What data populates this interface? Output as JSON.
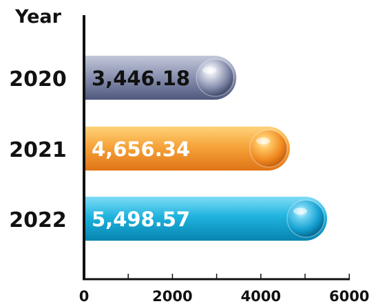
{
  "chart_data": {
    "type": "bar",
    "orientation": "horizontal",
    "ylabel": "Year",
    "categories": [
      "2020",
      "2021",
      "2022"
    ],
    "values": [
      3446.18,
      4656.34,
      5498.57
    ],
    "value_labels": [
      "3,446.18",
      "4,656.34",
      "5,498.57"
    ],
    "xlim": [
      0,
      6000
    ],
    "xticks": [
      "0",
      "2000",
      "4000",
      "6000"
    ],
    "colors": [
      "#8189a9",
      "#f39a2e",
      "#1aaed8"
    ],
    "grid": false,
    "legend": "none"
  }
}
